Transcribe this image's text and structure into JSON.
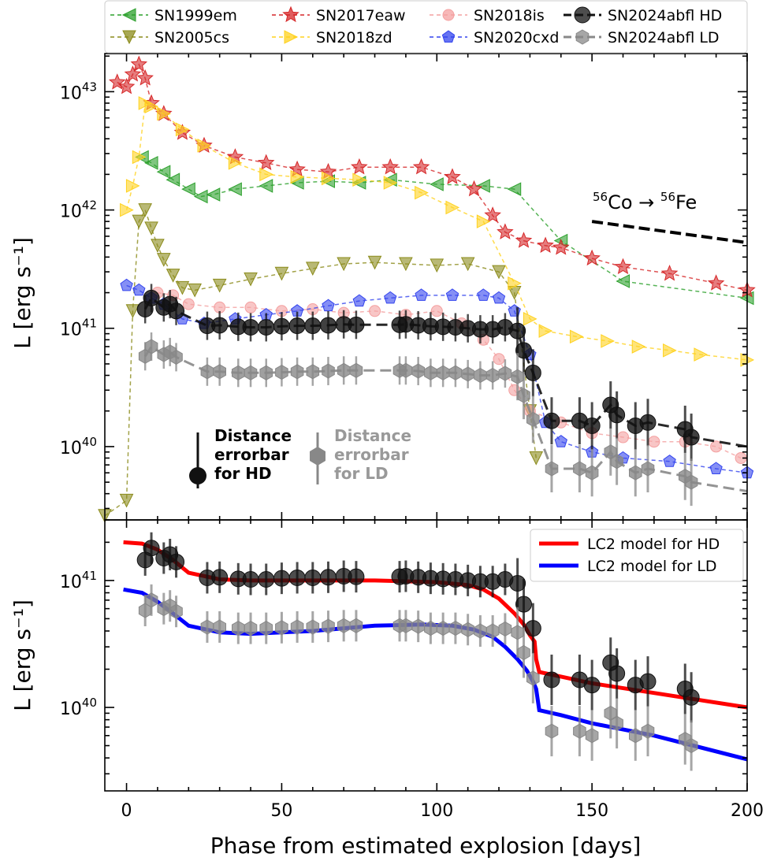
{
  "chart_data": [
    {
      "panel": "top",
      "type": "line",
      "ylabel": "L [erg s⁻¹]",
      "yscale": "log",
      "ylim": [
        2.4e+39,
        2.1e+43
      ],
      "xlim": [
        -7,
        200
      ],
      "ytick_labels": [
        "10^43",
        "10^42",
        "10^41",
        "10^40"
      ],
      "annotation": {
        "text": "56Co → 56Fe",
        "line_x": [
          150,
          200
        ],
        "line_y": [
          8e+41,
          5.3e+41
        ]
      },
      "errorbar_legend": {
        "hd_text": [
          "Distance",
          "errorbar",
          "for HD"
        ],
        "ld_text": [
          "Distance",
          "errorbar",
          "for LD"
        ]
      },
      "series": [
        {
          "name": "SN1999em",
          "color": "#2ca02c",
          "marker": "tri-left",
          "x": [
            5,
            8,
            12,
            15,
            20,
            24,
            28,
            35,
            45,
            55,
            65,
            75,
            85,
            100,
            115,
            125,
            140,
            160,
            200
          ],
          "y": [
            2.8e+42,
            2.5e+42,
            2.1e+42,
            1.8e+42,
            1.5e+42,
            1.3e+42,
            1.35e+42,
            1.5e+42,
            1.6e+42,
            1.7e+42,
            1.75e+42,
            1.7e+42,
            1.8e+42,
            1.65e+42,
            1.6e+42,
            1.5e+42,
            5.5e+41,
            2.5e+41,
            1.8e+41
          ]
        },
        {
          "name": "SN2005cs",
          "color": "#8b8b1a",
          "marker": "tri-down",
          "x": [
            -7,
            0,
            2,
            4,
            6,
            8,
            10,
            12,
            15,
            18,
            22,
            30,
            40,
            50,
            60,
            70,
            80,
            90,
            100,
            110,
            120,
            125,
            130,
            132
          ],
          "y": [
            2.6e+39,
            3.5e+39,
            1.4e+41,
            8e+41,
            1e+42,
            7e+41,
            5e+41,
            3.8e+41,
            2.8e+41,
            2.2e+41,
            2.1e+41,
            2.3e+41,
            2.6e+41,
            2.9e+41,
            3.2e+41,
            3.5e+41,
            3.6e+41,
            3.5e+41,
            3.4e+41,
            3.5e+41,
            3e+41,
            2e+41,
            2e+40,
            8e+39
          ]
        },
        {
          "name": "SN2017eaw",
          "color": "#d62728",
          "marker": "star",
          "x": [
            -3,
            0,
            2,
            4,
            6,
            8,
            12,
            18,
            25,
            35,
            45,
            55,
            65,
            75,
            85,
            95,
            105,
            112,
            118,
            122,
            128,
            135,
            140,
            150,
            160,
            175,
            190,
            200
          ],
          "y": [
            1.2e+43,
            1.1e+43,
            1.4e+43,
            1.7e+43,
            1.3e+43,
            8e+42,
            6.5e+42,
            4.5e+42,
            3.5e+42,
            2.8e+42,
            2.5e+42,
            2.2e+42,
            2.1e+42,
            2.3e+42,
            2.3e+42,
            2.3e+42,
            1.9e+42,
            1.5e+42,
            9e+41,
            6.5e+41,
            5.5e+41,
            5e+41,
            4.8e+41,
            3.9e+41,
            3.3e+41,
            2.9e+41,
            2.4e+41,
            2.1e+41
          ]
        },
        {
          "name": "SN2018zd",
          "color": "#ffd21f",
          "marker": "tri-right",
          "x": [
            0,
            2,
            4,
            6,
            8,
            12,
            18,
            25,
            35,
            45,
            55,
            65,
            75,
            85,
            95,
            105,
            115,
            125,
            130,
            135,
            145,
            155,
            165,
            175,
            185,
            200
          ],
          "y": [
            1e+42,
            1.6e+42,
            2.8e+42,
            8e+42,
            7.5e+42,
            6.5e+42,
            4.8e+42,
            3.5e+42,
            2.5e+42,
            2e+42,
            1.9e+42,
            1.85e+42,
            1.8e+42,
            1.7e+42,
            1.4e+42,
            1.05e+42,
            8e+41,
            2.4e+41,
            1.2e+41,
            9.5e+40,
            8.5e+40,
            7.8e+40,
            7e+40,
            6.5e+40,
            6e+40,
            5.4e+40
          ]
        },
        {
          "name": "SN2018is",
          "color": "#f4a0a0",
          "marker": "circle",
          "x": [
            10,
            15,
            20,
            30,
            40,
            50,
            60,
            70,
            80,
            90,
            100,
            108,
            115,
            120,
            125,
            130,
            140,
            150,
            160,
            170,
            180,
            190,
            198
          ],
          "y": [
            2e+41,
            1.9e+41,
            1.6e+41,
            1.5e+41,
            1.5e+41,
            1.4e+41,
            1.45e+41,
            1.35e+41,
            1.4e+41,
            1.3e+41,
            1.4e+41,
            1.1e+41,
            8e+40,
            5.5e+40,
            3e+40,
            2e+40,
            1.6e+40,
            1.3e+40,
            1.2e+40,
            1.1e+40,
            1.1e+40,
            1e+40,
            8e+39
          ]
        },
        {
          "name": "SN2020cxd",
          "color": "#3344ee",
          "marker": "pentagon",
          "x": [
            0,
            4,
            8,
            12,
            18,
            25,
            35,
            45,
            55,
            65,
            75,
            85,
            95,
            105,
            115,
            120,
            125,
            130,
            135,
            140,
            150,
            160,
            175,
            190,
            200
          ],
          "y": [
            2.3e+41,
            2.1e+41,
            1.8e+41,
            1.6e+41,
            1.2e+41,
            1.1e+41,
            1.2e+41,
            1.3e+41,
            1.4e+41,
            1.55e+41,
            1.7e+41,
            1.8e+41,
            1.9e+41,
            1.9e+41,
            1.9e+41,
            1.8e+41,
            1.4e+41,
            6e+40,
            1.6e+40,
            1.1e+40,
            9e+39,
            8e+39,
            7.5e+39,
            6.5e+39,
            6e+39
          ]
        },
        {
          "name": "SN2024abfl HD",
          "color": "#111111",
          "marker": "circle-big",
          "x": [
            6,
            8,
            12,
            14,
            16,
            26,
            30,
            36,
            40,
            45,
            50,
            55,
            60,
            65,
            70,
            74,
            88,
            90,
            94,
            98,
            102,
            106,
            110,
            114,
            118,
            122,
            126,
            128,
            131,
            137,
            146,
            150,
            156,
            158,
            164,
            168,
            180,
            182,
            200
          ],
          "y": [
            1.45e+41,
            1.8e+41,
            1.5e+41,
            1.6e+41,
            1.4e+41,
            1.05e+41,
            1.06e+41,
            1.03e+41,
            1.02e+41,
            1.02e+41,
            1.04e+41,
            1.05e+41,
            1.05e+41,
            1.06e+41,
            1.08e+41,
            1.07e+41,
            1.07e+41,
            1.08e+41,
            1.06e+41,
            1.04e+41,
            1.03e+41,
            1.02e+41,
            1e+41,
            9.8e+40,
            9.8e+40,
            1.02e+41,
            9.5e+40,
            6.5e+40,
            4.2e+40,
            1.65e+40,
            1.65e+40,
            1.5e+40,
            2.25e+40,
            1.85e+40,
            1.5e+40,
            1.6e+40,
            1.4e+40,
            1.2e+40,
            1e+40
          ]
        },
        {
          "name": "SN2024abfl LD",
          "color": "#888888",
          "marker": "hexagon",
          "x": [
            6,
            8,
            12,
            14,
            16,
            26,
            30,
            36,
            40,
            45,
            50,
            55,
            60,
            65,
            70,
            74,
            88,
            90,
            94,
            98,
            102,
            106,
            110,
            114,
            118,
            122,
            126,
            128,
            131,
            137,
            146,
            150,
            156,
            158,
            164,
            168,
            180,
            182,
            200
          ],
          "y": [
            5.8e+40,
            7e+40,
            6e+40,
            6.3e+40,
            5.7e+40,
            4.3e+40,
            4.3e+40,
            4.2e+40,
            4.2e+40,
            4.2e+40,
            4.25e+40,
            4.3e+40,
            4.3e+40,
            4.35e+40,
            4.4e+40,
            4.4e+40,
            4.4e+40,
            4.4e+40,
            4.35e+40,
            4.2e+40,
            4.2e+40,
            4.2e+40,
            4.1e+40,
            4e+40,
            4e+40,
            4.15e+40,
            3.9e+40,
            2.7e+40,
            1.7e+40,
            6.5e+39,
            6.5e+39,
            6e+39,
            9e+39,
            7.5e+39,
            6e+39,
            6.5e+39,
            5.6e+39,
            5e+39,
            4.2e+39
          ]
        }
      ]
    },
    {
      "panel": "bottom",
      "type": "line",
      "xlabel": "Phase from estimated explosion [days]",
      "ylabel": "L [erg s⁻¹]",
      "yscale": "log",
      "ylim": [
        2.2e+39,
        3e+41
      ],
      "xlim": [
        -7,
        200
      ],
      "xticks": [
        0,
        50,
        100,
        150,
        200
      ],
      "ytick_labels": [
        "10^41",
        "10^40"
      ],
      "series": [
        {
          "name": "LC2 model for HD",
          "color": "#ff0000",
          "x": [
            -1,
            5,
            10,
            15,
            20,
            30,
            40,
            60,
            80,
            100,
            110,
            115,
            120,
            125,
            128,
            130,
            131.5,
            132,
            133,
            140,
            150,
            170,
            200
          ],
          "y": [
            2e+41,
            1.95e+41,
            1.75e+41,
            1.45e+41,
            1.15e+41,
            1.02e+41,
            1e+41,
            1e+41,
            1e+41,
            9.7e+40,
            9.2e+40,
            8.5e+40,
            7.2e+40,
            5.5e+40,
            4.5e+40,
            3.7e+40,
            3.3e+40,
            2.4e+40,
            1.9e+40,
            1.75e+40,
            1.55e+40,
            1.3e+40,
            1e+40
          ]
        },
        {
          "name": "LC2 model for LD",
          "color": "#0000ff",
          "x": [
            -1,
            5,
            10,
            15,
            20,
            30,
            40,
            50,
            60,
            80,
            95,
            105,
            112,
            118,
            122,
            126,
            129,
            131,
            132,
            133,
            140,
            150,
            170,
            200
          ],
          "y": [
            8.5e+40,
            8e+40,
            6.8e+40,
            5.5e+40,
            4.4e+40,
            3.9e+40,
            3.8e+40,
            3.9e+40,
            4e+40,
            4.4e+40,
            4.5e+40,
            4.4e+40,
            4.1e+40,
            3.6e+40,
            3e+40,
            2.4e+40,
            1.95e+40,
            1.6e+40,
            1.4e+40,
            9.5e+39,
            8.7e+39,
            7.5e+39,
            6e+39,
            3.9e+39
          ]
        },
        {
          "name": "SN2024abfl HD data",
          "color": "#111111",
          "marker": "circle-big",
          "x": [
            6,
            8,
            12,
            14,
            16,
            26,
            30,
            36,
            40,
            45,
            50,
            55,
            60,
            65,
            70,
            74,
            88,
            90,
            94,
            98,
            102,
            106,
            110,
            114,
            118,
            122,
            126,
            128,
            131,
            137,
            146,
            150,
            156,
            158,
            164,
            168,
            180,
            182
          ],
          "y": [
            1.45e+41,
            1.8e+41,
            1.5e+41,
            1.6e+41,
            1.4e+41,
            1.05e+41,
            1.06e+41,
            1.03e+41,
            1.02e+41,
            1.02e+41,
            1.04e+41,
            1.05e+41,
            1.05e+41,
            1.06e+41,
            1.08e+41,
            1.07e+41,
            1.07e+41,
            1.08e+41,
            1.06e+41,
            1.04e+41,
            1.03e+41,
            1.02e+41,
            1e+41,
            9.8e+40,
            9.8e+40,
            1.02e+41,
            9.5e+40,
            6.5e+40,
            4.2e+40,
            1.65e+40,
            1.65e+40,
            1.5e+40,
            2.25e+40,
            1.85e+40,
            1.5e+40,
            1.6e+40,
            1.4e+40,
            1.2e+40
          ]
        },
        {
          "name": "SN2024abfl LD data",
          "color": "#888888",
          "marker": "hexagon",
          "x": [
            6,
            8,
            12,
            14,
            16,
            26,
            30,
            36,
            40,
            45,
            50,
            55,
            60,
            65,
            70,
            74,
            88,
            90,
            94,
            98,
            102,
            106,
            110,
            114,
            118,
            122,
            126,
            128,
            131,
            137,
            146,
            150,
            156,
            158,
            164,
            168,
            180,
            182
          ],
          "y": [
            5.8e+40,
            7e+40,
            6e+40,
            6.3e+40,
            5.7e+40,
            4.3e+40,
            4.3e+40,
            4.2e+40,
            4.2e+40,
            4.2e+40,
            4.25e+40,
            4.3e+40,
            4.3e+40,
            4.35e+40,
            4.4e+40,
            4.4e+40,
            4.4e+40,
            4.4e+40,
            4.35e+40,
            4.2e+40,
            4.2e+40,
            4.2e+40,
            4.1e+40,
            4e+40,
            4e+40,
            4.15e+40,
            3.9e+40,
            2.7e+40,
            1.7e+40,
            6.5e+39,
            6.5e+39,
            6e+39,
            9e+39,
            7.5e+39,
            6e+39,
            6.5e+39,
            5.6e+39,
            5e+39
          ]
        }
      ]
    }
  ],
  "legend_top": [
    "SN1999em",
    "SN2005cs",
    "SN2017eaw",
    "SN2018zd",
    "SN2018is",
    "SN2020cxd",
    "SN2024abfl HD",
    "SN2024abfl LD"
  ],
  "legend_bottom": [
    "LC2 model for HD",
    "LC2 model for LD"
  ]
}
